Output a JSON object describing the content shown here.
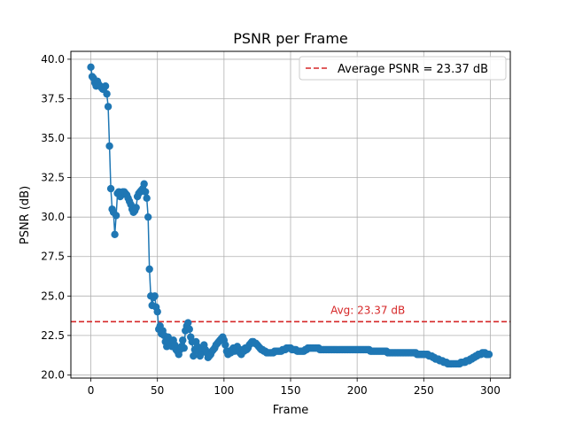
{
  "chart_data": {
    "type": "line",
    "title": "PSNR per Frame",
    "xlabel": "Frame",
    "ylabel": "PSNR (dB)",
    "xlim": [
      -15,
      315
    ],
    "ylim": [
      19.8,
      40.5
    ],
    "x_ticks": [
      0,
      50,
      100,
      150,
      200,
      250,
      300
    ],
    "y_ticks": [
      20.0,
      22.5,
      25.0,
      27.5,
      30.0,
      32.5,
      35.0,
      37.5,
      40.0
    ],
    "grid": true,
    "legend_position": "top-right",
    "average": {
      "value": 23.37,
      "legend_label": "Average PSNR = 23.37 dB",
      "annotation": "Avg: 23.37 dB",
      "color": "#d62728"
    },
    "series": [
      {
        "color": "#1f77b4",
        "points": [
          [
            0,
            39.5
          ],
          [
            1,
            38.9
          ],
          [
            2,
            38.8
          ],
          [
            3,
            38.5
          ],
          [
            4,
            38.3
          ],
          [
            5,
            38.6
          ],
          [
            6,
            38.4
          ],
          [
            7,
            38.3
          ],
          [
            8,
            38.2
          ],
          [
            9,
            38.1
          ],
          [
            10,
            38.2
          ],
          [
            11,
            38.3
          ],
          [
            12,
            37.8
          ],
          [
            13,
            37.0
          ],
          [
            14,
            34.5
          ],
          [
            15,
            31.8
          ],
          [
            16,
            30.5
          ],
          [
            17,
            30.3
          ],
          [
            18,
            28.9
          ],
          [
            19,
            30.1
          ],
          [
            20,
            31.5
          ],
          [
            21,
            31.6
          ],
          [
            22,
            31.3
          ],
          [
            23,
            31.4
          ],
          [
            24,
            31.6
          ],
          [
            25,
            31.6
          ],
          [
            26,
            31.5
          ],
          [
            27,
            31.4
          ],
          [
            28,
            31.2
          ],
          [
            29,
            31.0
          ],
          [
            30,
            30.8
          ],
          [
            31,
            30.5
          ],
          [
            32,
            30.3
          ],
          [
            33,
            30.4
          ],
          [
            34,
            30.6
          ],
          [
            35,
            31.3
          ],
          [
            36,
            31.5
          ],
          [
            37,
            31.6
          ],
          [
            38,
            31.7
          ],
          [
            39,
            31.8
          ],
          [
            40,
            32.1
          ],
          [
            41,
            31.6
          ],
          [
            42,
            31.2
          ],
          [
            43,
            30.0
          ],
          [
            44,
            26.7
          ],
          [
            45,
            25.0
          ],
          [
            46,
            24.4
          ],
          [
            47,
            24.9
          ],
          [
            48,
            25.0
          ],
          [
            49,
            24.3
          ],
          [
            50,
            24.0
          ],
          [
            51,
            22.9
          ],
          [
            52,
            23.1
          ],
          [
            53,
            22.6
          ],
          [
            54,
            22.8
          ],
          [
            55,
            22.5
          ],
          [
            56,
            22.1
          ],
          [
            57,
            21.8
          ],
          [
            58,
            22.4
          ],
          [
            59,
            21.9
          ],
          [
            60,
            22.0
          ],
          [
            61,
            21.8
          ],
          [
            62,
            22.2
          ],
          [
            63,
            21.9
          ],
          [
            64,
            21.6
          ],
          [
            65,
            21.5
          ],
          [
            66,
            21.3
          ],
          [
            67,
            21.6
          ],
          [
            68,
            21.8
          ],
          [
            69,
            22.2
          ],
          [
            70,
            21.7
          ],
          [
            71,
            22.8
          ],
          [
            72,
            23.1
          ],
          [
            73,
            23.3
          ],
          [
            74,
            22.9
          ],
          [
            75,
            22.4
          ],
          [
            76,
            22.1
          ],
          [
            77,
            21.2
          ],
          [
            78,
            21.6
          ],
          [
            79,
            22.1
          ],
          [
            80,
            21.8
          ],
          [
            81,
            21.5
          ],
          [
            82,
            21.2
          ],
          [
            83,
            21.4
          ],
          [
            84,
            21.7
          ],
          [
            85,
            21.9
          ],
          [
            86,
            21.6
          ],
          [
            87,
            21.4
          ],
          [
            88,
            21.1
          ],
          [
            89,
            21.2
          ],
          [
            90,
            21.3
          ],
          [
            91,
            21.5
          ],
          [
            92,
            21.6
          ],
          [
            93,
            21.7
          ],
          [
            94,
            21.9
          ],
          [
            95,
            22.0
          ],
          [
            96,
            22.1
          ],
          [
            97,
            22.2
          ],
          [
            98,
            22.3
          ],
          [
            99,
            22.4
          ],
          [
            100,
            22.2
          ],
          [
            101,
            21.9
          ],
          [
            102,
            21.5
          ],
          [
            103,
            21.3
          ],
          [
            104,
            21.5
          ],
          [
            105,
            21.4
          ],
          [
            106,
            21.6
          ],
          [
            107,
            21.7
          ],
          [
            108,
            21.5
          ],
          [
            109,
            21.6
          ],
          [
            110,
            21.8
          ],
          [
            111,
            21.6
          ],
          [
            112,
            21.4
          ],
          [
            113,
            21.3
          ],
          [
            114,
            21.6
          ],
          [
            115,
            21.5
          ],
          [
            116,
            21.7
          ],
          [
            117,
            21.6
          ],
          [
            118,
            21.7
          ],
          [
            119,
            21.9
          ],
          [
            120,
            22.0
          ],
          [
            121,
            22.1
          ],
          [
            122,
            22.1
          ],
          [
            123,
            22.0
          ],
          [
            124,
            22.0
          ],
          [
            125,
            21.9
          ],
          [
            126,
            21.8
          ],
          [
            127,
            21.7
          ],
          [
            128,
            21.6
          ],
          [
            129,
            21.6
          ],
          [
            130,
            21.5
          ],
          [
            131,
            21.5
          ],
          [
            132,
            21.4
          ],
          [
            133,
            21.4
          ],
          [
            134,
            21.4
          ],
          [
            135,
            21.4
          ],
          [
            136,
            21.4
          ],
          [
            137,
            21.4
          ],
          [
            138,
            21.5
          ],
          [
            139,
            21.5
          ],
          [
            140,
            21.5
          ],
          [
            141,
            21.5
          ],
          [
            142,
            21.5
          ],
          [
            143,
            21.5
          ],
          [
            144,
            21.6
          ],
          [
            145,
            21.6
          ],
          [
            146,
            21.6
          ],
          [
            147,
            21.7
          ],
          [
            148,
            21.7
          ],
          [
            149,
            21.7
          ],
          [
            150,
            21.7
          ],
          [
            151,
            21.6
          ],
          [
            152,
            21.6
          ],
          [
            153,
            21.6
          ],
          [
            154,
            21.6
          ],
          [
            155,
            21.5
          ],
          [
            156,
            21.5
          ],
          [
            157,
            21.5
          ],
          [
            158,
            21.5
          ],
          [
            159,
            21.5
          ],
          [
            160,
            21.5
          ],
          [
            161,
            21.6
          ],
          [
            162,
            21.6
          ],
          [
            163,
            21.7
          ],
          [
            164,
            21.7
          ],
          [
            165,
            21.7
          ],
          [
            166,
            21.7
          ],
          [
            167,
            21.7
          ],
          [
            168,
            21.7
          ],
          [
            169,
            21.7
          ],
          [
            170,
            21.7
          ],
          [
            171,
            21.7
          ],
          [
            172,
            21.6
          ],
          [
            173,
            21.6
          ],
          [
            174,
            21.6
          ],
          [
            175,
            21.6
          ],
          [
            176,
            21.6
          ],
          [
            177,
            21.6
          ],
          [
            178,
            21.6
          ],
          [
            179,
            21.6
          ],
          [
            180,
            21.6
          ],
          [
            181,
            21.6
          ],
          [
            182,
            21.6
          ],
          [
            183,
            21.6
          ],
          [
            184,
            21.6
          ],
          [
            185,
            21.6
          ],
          [
            186,
            21.6
          ],
          [
            187,
            21.6
          ],
          [
            188,
            21.6
          ],
          [
            189,
            21.6
          ],
          [
            190,
            21.6
          ],
          [
            191,
            21.6
          ],
          [
            192,
            21.6
          ],
          [
            193,
            21.6
          ],
          [
            194,
            21.6
          ],
          [
            195,
            21.6
          ],
          [
            196,
            21.6
          ],
          [
            197,
            21.6
          ],
          [
            198,
            21.6
          ],
          [
            199,
            21.6
          ],
          [
            200,
            21.6
          ],
          [
            201,
            21.6
          ],
          [
            202,
            21.6
          ],
          [
            203,
            21.6
          ],
          [
            204,
            21.6
          ],
          [
            205,
            21.6
          ],
          [
            206,
            21.6
          ],
          [
            207,
            21.6
          ],
          [
            208,
            21.6
          ],
          [
            209,
            21.6
          ],
          [
            210,
            21.5
          ],
          [
            211,
            21.5
          ],
          [
            212,
            21.5
          ],
          [
            213,
            21.5
          ],
          [
            214,
            21.5
          ],
          [
            215,
            21.5
          ],
          [
            216,
            21.5
          ],
          [
            217,
            21.5
          ],
          [
            218,
            21.5
          ],
          [
            219,
            21.5
          ],
          [
            220,
            21.5
          ],
          [
            221,
            21.5
          ],
          [
            222,
            21.5
          ],
          [
            223,
            21.4
          ],
          [
            224,
            21.4
          ],
          [
            225,
            21.4
          ],
          [
            226,
            21.4
          ],
          [
            227,
            21.4
          ],
          [
            228,
            21.4
          ],
          [
            229,
            21.4
          ],
          [
            230,
            21.4
          ],
          [
            231,
            21.4
          ],
          [
            232,
            21.4
          ],
          [
            233,
            21.4
          ],
          [
            234,
            21.4
          ],
          [
            235,
            21.4
          ],
          [
            236,
            21.4
          ],
          [
            237,
            21.4
          ],
          [
            238,
            21.4
          ],
          [
            239,
            21.4
          ],
          [
            240,
            21.4
          ],
          [
            241,
            21.4
          ],
          [
            242,
            21.4
          ],
          [
            243,
            21.4
          ],
          [
            244,
            21.4
          ],
          [
            245,
            21.3
          ],
          [
            246,
            21.3
          ],
          [
            247,
            21.3
          ],
          [
            248,
            21.3
          ],
          [
            249,
            21.3
          ],
          [
            250,
            21.3
          ],
          [
            251,
            21.3
          ],
          [
            252,
            21.3
          ],
          [
            253,
            21.3
          ],
          [
            254,
            21.2
          ],
          [
            255,
            21.2
          ],
          [
            256,
            21.2
          ],
          [
            257,
            21.1
          ],
          [
            258,
            21.1
          ],
          [
            259,
            21.0
          ],
          [
            260,
            21.0
          ],
          [
            261,
            21.0
          ],
          [
            262,
            20.9
          ],
          [
            263,
            20.9
          ],
          [
            264,
            20.9
          ],
          [
            265,
            20.8
          ],
          [
            266,
            20.8
          ],
          [
            267,
            20.8
          ],
          [
            268,
            20.7
          ],
          [
            269,
            20.7
          ],
          [
            270,
            20.7
          ],
          [
            271,
            20.7
          ],
          [
            272,
            20.7
          ],
          [
            273,
            20.7
          ],
          [
            274,
            20.7
          ],
          [
            275,
            20.7
          ],
          [
            276,
            20.7
          ],
          [
            277,
            20.7
          ],
          [
            278,
            20.8
          ],
          [
            279,
            20.8
          ],
          [
            280,
            20.8
          ],
          [
            281,
            20.8
          ],
          [
            282,
            20.9
          ],
          [
            283,
            20.9
          ],
          [
            284,
            20.9
          ],
          [
            285,
            21.0
          ],
          [
            286,
            21.0
          ],
          [
            287,
            21.1
          ],
          [
            288,
            21.1
          ],
          [
            289,
            21.2
          ],
          [
            290,
            21.2
          ],
          [
            291,
            21.3
          ],
          [
            292,
            21.3
          ],
          [
            293,
            21.3
          ],
          [
            294,
            21.4
          ],
          [
            295,
            21.4
          ],
          [
            296,
            21.4
          ],
          [
            297,
            21.3
          ],
          [
            298,
            21.3
          ],
          [
            299,
            21.3
          ]
        ]
      }
    ]
  }
}
